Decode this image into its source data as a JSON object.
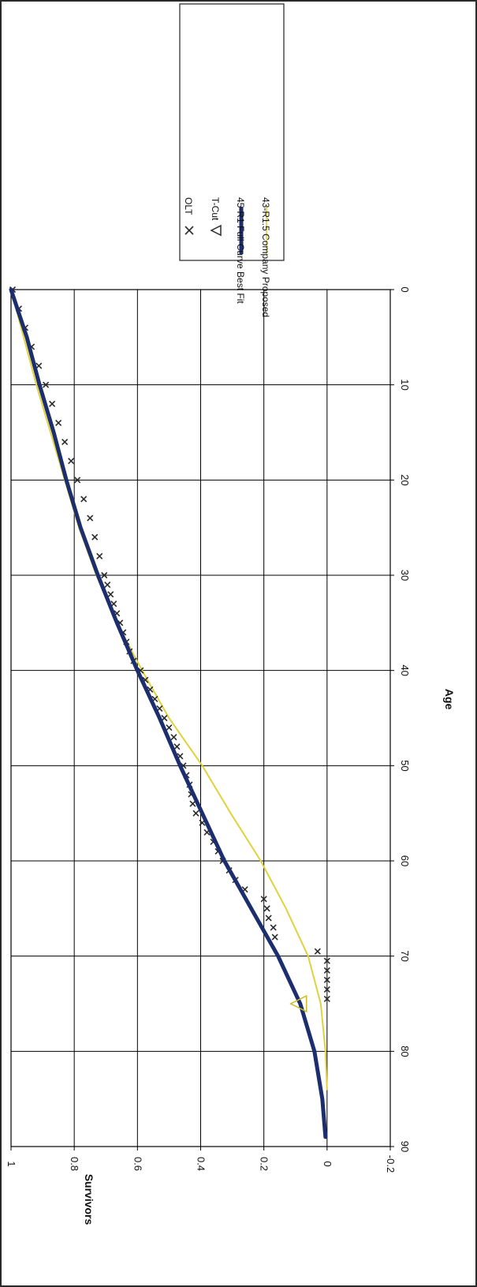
{
  "chart_data": {
    "type": "line",
    "orientation": "rotated-90",
    "xlabel": "Age",
    "ylabel": "Survivors",
    "xlim": [
      0,
      90
    ],
    "ylim": [
      -0.2,
      1
    ],
    "x_ticks": [
      "0",
      "10",
      "20",
      "30",
      "40",
      "50",
      "60",
      "70",
      "80",
      "90"
    ],
    "y_ticks": [
      "-0.2",
      "0",
      "0.2",
      "0.4",
      "0.6",
      "0.8",
      "1"
    ],
    "grid": true,
    "legend_position": "top-right",
    "legend": [
      {
        "label": "OLT",
        "marker": "x",
        "color": "#2b2b2b"
      },
      {
        "label": "T-Cut",
        "marker": "triangle",
        "color": "#2b2b2b"
      },
      {
        "label": "45-R1 Full Curve Best Fit",
        "marker": "line",
        "color": "#1c2e6e"
      },
      {
        "label": "43-R1.5 Company Proposed",
        "marker": "line",
        "color": "#e0d23c"
      }
    ],
    "series": [
      {
        "name": "OLT",
        "style": "markers-x",
        "color": "#2b2b2b",
        "x": [
          0,
          2,
          4,
          6,
          8,
          10,
          12,
          14,
          16,
          18,
          20,
          22,
          24,
          26,
          28,
          30,
          31,
          32,
          33,
          34,
          35,
          36,
          37,
          38,
          39,
          40,
          41,
          42,
          43,
          44,
          45,
          46,
          47,
          48,
          49,
          50,
          51,
          52,
          53,
          54,
          55,
          56,
          57,
          58,
          59,
          60,
          61,
          62,
          63,
          64,
          65,
          66,
          67,
          68,
          69.5,
          70.5,
          71.5,
          72.5,
          73.5,
          74.5
        ],
        "y": [
          0.995,
          0.975,
          0.955,
          0.935,
          0.912,
          0.89,
          0.87,
          0.85,
          0.83,
          0.81,
          0.79,
          0.77,
          0.75,
          0.735,
          0.72,
          0.705,
          0.695,
          0.685,
          0.675,
          0.665,
          0.655,
          0.645,
          0.635,
          0.625,
          0.612,
          0.59,
          0.575,
          0.56,
          0.545,
          0.53,
          0.515,
          0.5,
          0.485,
          0.475,
          0.465,
          0.455,
          0.445,
          0.435,
          0.43,
          0.425,
          0.415,
          0.395,
          0.38,
          0.36,
          0.345,
          0.33,
          0.31,
          0.29,
          0.26,
          0.2,
          0.19,
          0.185,
          0.17,
          0.165,
          0.03,
          0.0,
          0.0,
          0.0,
          0.0,
          0.0
        ]
      },
      {
        "name": "T-Cut",
        "style": "marker-triangle",
        "color": "#2b2b2b",
        "x": [
          75
        ],
        "y": [
          0.09
        ]
      },
      {
        "name": "45-R1 Full Curve Best Fit",
        "style": "line",
        "color": "#1c2e6e",
        "x": [
          0,
          5,
          10,
          15,
          20,
          25,
          30,
          35,
          40,
          45,
          50,
          55,
          60,
          65,
          70,
          75,
          80,
          85,
          89
        ],
        "y": [
          1.0,
          0.95,
          0.91,
          0.865,
          0.825,
          0.78,
          0.725,
          0.665,
          0.6,
          0.53,
          0.465,
          0.395,
          0.325,
          0.24,
          0.155,
          0.085,
          0.04,
          0.015,
          0.005
        ]
      },
      {
        "name": "43-R1.5 Company Proposed",
        "style": "line",
        "color": "#e0d23c",
        "x": [
          0,
          5,
          10,
          15,
          20,
          25,
          30,
          35,
          40,
          45,
          50,
          55,
          60,
          65,
          70,
          75,
          80,
          84
        ],
        "y": [
          1.0,
          0.96,
          0.92,
          0.875,
          0.83,
          0.785,
          0.73,
          0.665,
          0.585,
          0.5,
          0.395,
          0.305,
          0.21,
          0.13,
          0.06,
          0.02,
          0.005,
          0.0
        ]
      }
    ]
  }
}
